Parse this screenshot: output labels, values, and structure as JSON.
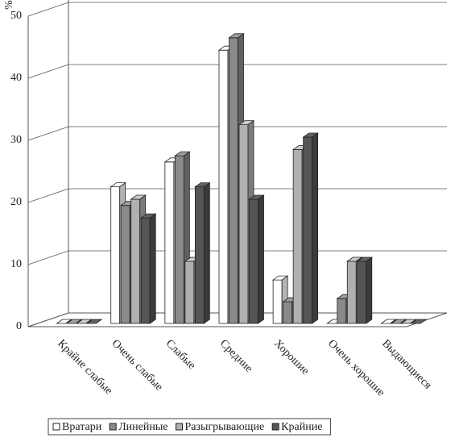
{
  "chart_data": {
    "type": "bar3d",
    "y_label": "%",
    "categories": [
      "Крайне слабые",
      "Очень слабые",
      "Слабые",
      "Средние",
      "Хорошие",
      "Очень хорошие",
      "Выдающиеся"
    ],
    "series": [
      {
        "name": "Вратари",
        "color": "#ffffff",
        "values": [
          0,
          22,
          26,
          44,
          7,
          0,
          0
        ]
      },
      {
        "name": "Линейные",
        "color": "#8a8a8a",
        "values": [
          0,
          19,
          27,
          46,
          3.5,
          4,
          0
        ]
      },
      {
        "name": "Разыгрывающие",
        "color": "#b0b0b0",
        "values": [
          0,
          20,
          10,
          32,
          28,
          10,
          0
        ]
      },
      {
        "name": "Крайние",
        "color": "#555555",
        "values": [
          0,
          17,
          22,
          20,
          30,
          10,
          0
        ]
      }
    ],
    "ylim": [
      0,
      50
    ],
    "yticks": [
      0,
      10,
      20,
      30,
      40,
      50
    ],
    "grid": true,
    "legend": "bottom"
  }
}
